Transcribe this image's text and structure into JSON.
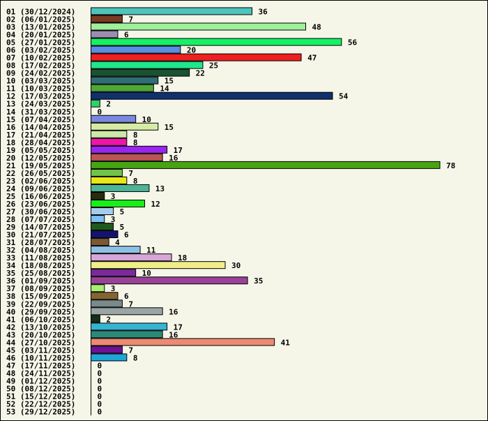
{
  "chart_data": {
    "type": "bar",
    "orientation": "horizontal",
    "title": "",
    "xlabel": "",
    "ylabel": "",
    "grid": false,
    "xlim": [
      0,
      78
    ],
    "categories": [
      "01 (30/12/2024)",
      "02 (06/01/2025)",
      "03 (13/01/2025)",
      "04 (20/01/2025)",
      "05 (27/01/2025)",
      "06 (03/02/2025)",
      "07 (10/02/2025)",
      "08 (17/02/2025)",
      "09 (24/02/2025)",
      "10 (03/03/2025)",
      "11 (10/03/2025)",
      "12 (17/03/2025)",
      "13 (24/03/2025)",
      "14 (31/03/2025)",
      "15 (07/04/2025)",
      "16 (14/04/2025)",
      "17 (21/04/2025)",
      "18 (28/04/2025)",
      "19 (05/05/2025)",
      "20 (12/05/2025)",
      "21 (19/05/2025)",
      "22 (26/05/2025)",
      "23 (02/06/2025)",
      "24 (09/06/2025)",
      "25 (16/06/2025)",
      "26 (23/06/2025)",
      "27 (30/06/2025)",
      "28 (07/07/2025)",
      "29 (14/07/2025)",
      "30 (21/07/2025)",
      "31 (28/07/2025)",
      "32 (04/08/2025)",
      "33 (11/08/2025)",
      "34 (18/08/2025)",
      "35 (25/08/2025)",
      "36 (01/09/2025)",
      "37 (08/09/2025)",
      "38 (15/09/2025)",
      "39 (22/09/2025)",
      "40 (29/09/2025)",
      "41 (06/10/2025)",
      "42 (13/10/2025)",
      "43 (20/10/2025)",
      "44 (27/10/2025)",
      "45 (03/11/2025)",
      "46 (10/11/2025)",
      "47 (17/11/2025)",
      "48 (24/11/2025)",
      "49 (01/12/2025)",
      "50 (08/12/2025)",
      "51 (15/12/2025)",
      "52 (22/12/2025)",
      "53 (29/12/2025)"
    ],
    "values": [
      36,
      7,
      48,
      6,
      56,
      20,
      47,
      25,
      22,
      15,
      14,
      54,
      2,
      0,
      10,
      15,
      8,
      8,
      17,
      16,
      78,
      7,
      8,
      13,
      3,
      12,
      5,
      3,
      5,
      6,
      4,
      11,
      18,
      30,
      10,
      35,
      3,
      6,
      7,
      16,
      2,
      17,
      16,
      41,
      7,
      8,
      0,
      0,
      0,
      0,
      0,
      0,
      0
    ],
    "colors": [
      "#4dc4bc",
      "#7a3b22",
      "#9ff09a",
      "#9b8db0",
      "#14f264",
      "#5a8ee6",
      "#ee2020",
      "#1ee88a",
      "#1a5232",
      "#2e6e74",
      "#4ea834",
      "#10306e",
      "#2ed268",
      "#ffffff",
      "#7a88e0",
      "#d6eca4",
      "#cce8a8",
      "#f014a8",
      "#9a24f0",
      "#bc5454",
      "#46a412",
      "#70c448",
      "#e8e814",
      "#4eb496",
      "#2a2a0e",
      "#1aee1a",
      "#a6ccec",
      "#7ac0f0",
      "#1e5a1e",
      "#14146e",
      "#7a5a2e",
      "#8ec0e4",
      "#d8a6d8",
      "#f0ee8a",
      "#7a2a9a",
      "#9a4298",
      "#a6f070",
      "#866432",
      "#7a8a8a",
      "#9aa6a6",
      "#14301a",
      "#36b4d4",
      "#2a8a7a",
      "#ec8a72",
      "#6e1296",
      "#1ea6d8",
      "#ffffff",
      "#ffffff",
      "#ffffff",
      "#ffffff",
      "#ffffff",
      "#ffffff",
      "#ffffff"
    ]
  }
}
